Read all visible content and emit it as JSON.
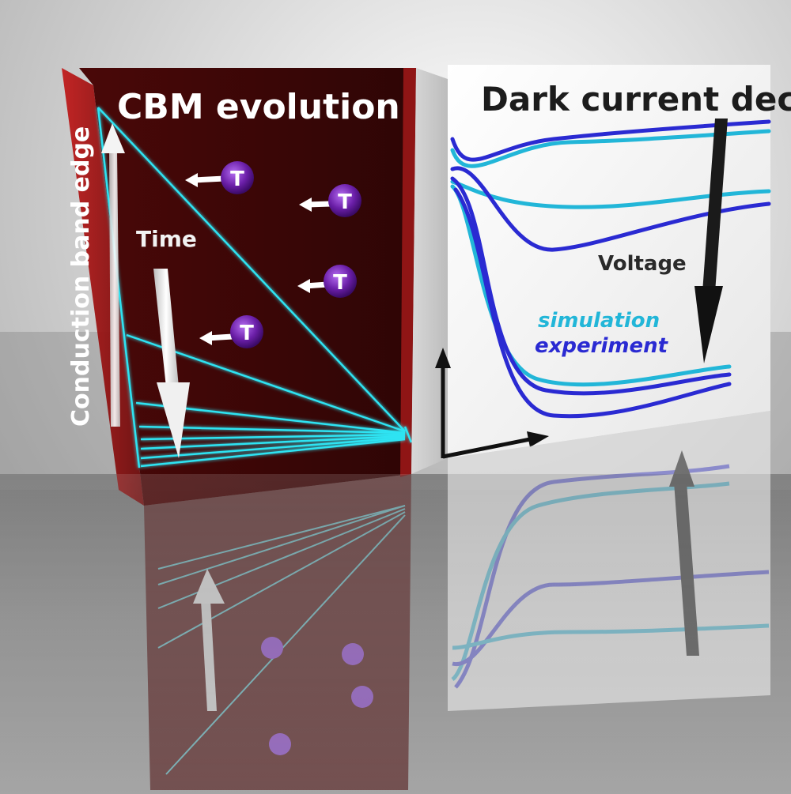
{
  "left_panel": {
    "title": "CBM evolution",
    "time_label": "Time",
    "side_label": "Conduction band edge",
    "trap_symbol": "T"
  },
  "right_panel": {
    "title": "Dark current decay",
    "voltage_label": "Voltage",
    "legend": {
      "simulation": "simulation",
      "experiment": "experiment"
    }
  },
  "colors": {
    "box_fill": "#3a0707",
    "box_edge": "#8e1414",
    "band_line": "#2ee3f2",
    "simulation": "#22b6d8",
    "experiment": "#2a2ad2",
    "axis": "#111111",
    "trap": "#6b1fa8",
    "floor": "#808080"
  }
}
